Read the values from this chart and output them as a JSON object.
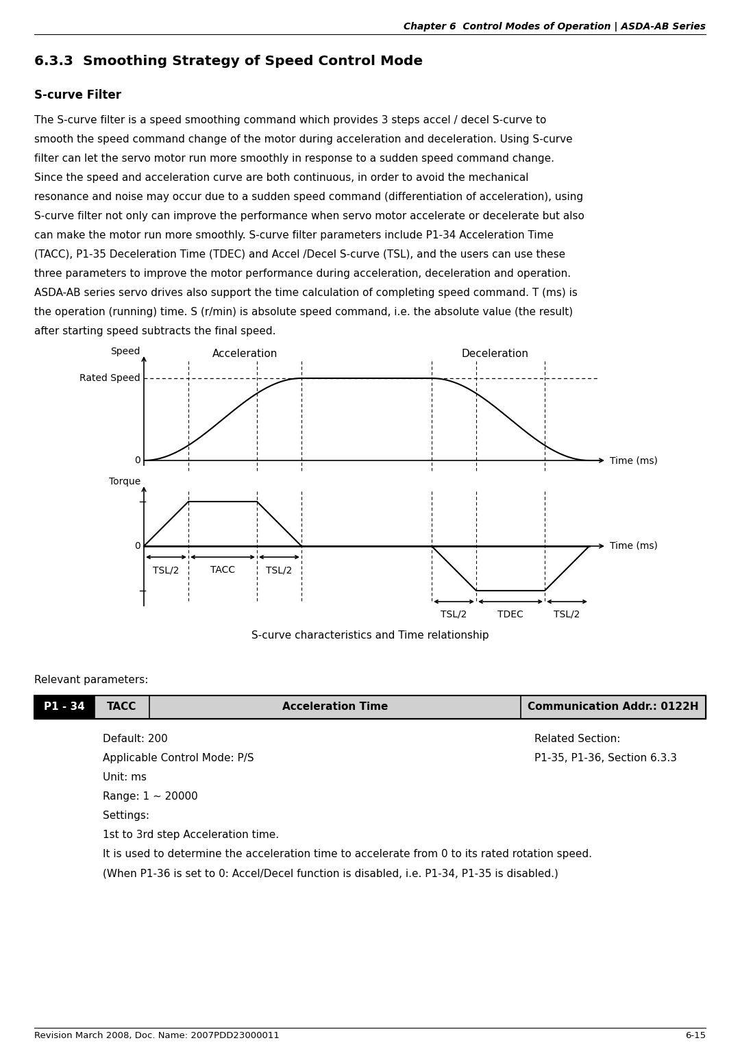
{
  "chapter_header": "Chapter 6  Control Modes of Operation | ASDA-AB Series",
  "section_title": "6.3.3  Smoothing Strategy of Speed Control Mode",
  "subsection_title": "S-curve Filter",
  "body_text": [
    "The S-curve filter is a speed smoothing command which provides 3 steps accel / decel S-curve to",
    "smooth the speed command change of the motor during acceleration and deceleration. Using S-curve",
    "filter can let the servo motor run more smoothly in response to a sudden speed command change.",
    "Since the speed and acceleration curve are both continuous, in order to avoid the mechanical",
    "resonance and noise may occur due to a sudden speed command (differentiation of acceleration), using",
    "S-curve filter not only can improve the performance when servo motor accelerate or decelerate but also",
    "can make the motor run more smoothly. S-curve filter parameters include P1-34 Acceleration Time",
    "(TACC), P1-35 Deceleration Time (TDEC) and Accel /Decel S-curve (TSL), and the users can use these",
    "three parameters to improve the motor performance during acceleration, deceleration and operation.",
    "ASDA-AB series servo drives also support the time calculation of completing speed command. T (ms) is",
    "the operation (running) time. S (r/min) is absolute speed command, i.e. the absolute value (the result)",
    "after starting speed subtracts the final speed."
  ],
  "diagram_caption": "S-curve characteristics and Time relationship",
  "relevant_params_label": "Relevant parameters:",
  "footer_left": "Revision March 2008, Doc. Name: 2007PDD23000011",
  "footer_right": "6-15"
}
